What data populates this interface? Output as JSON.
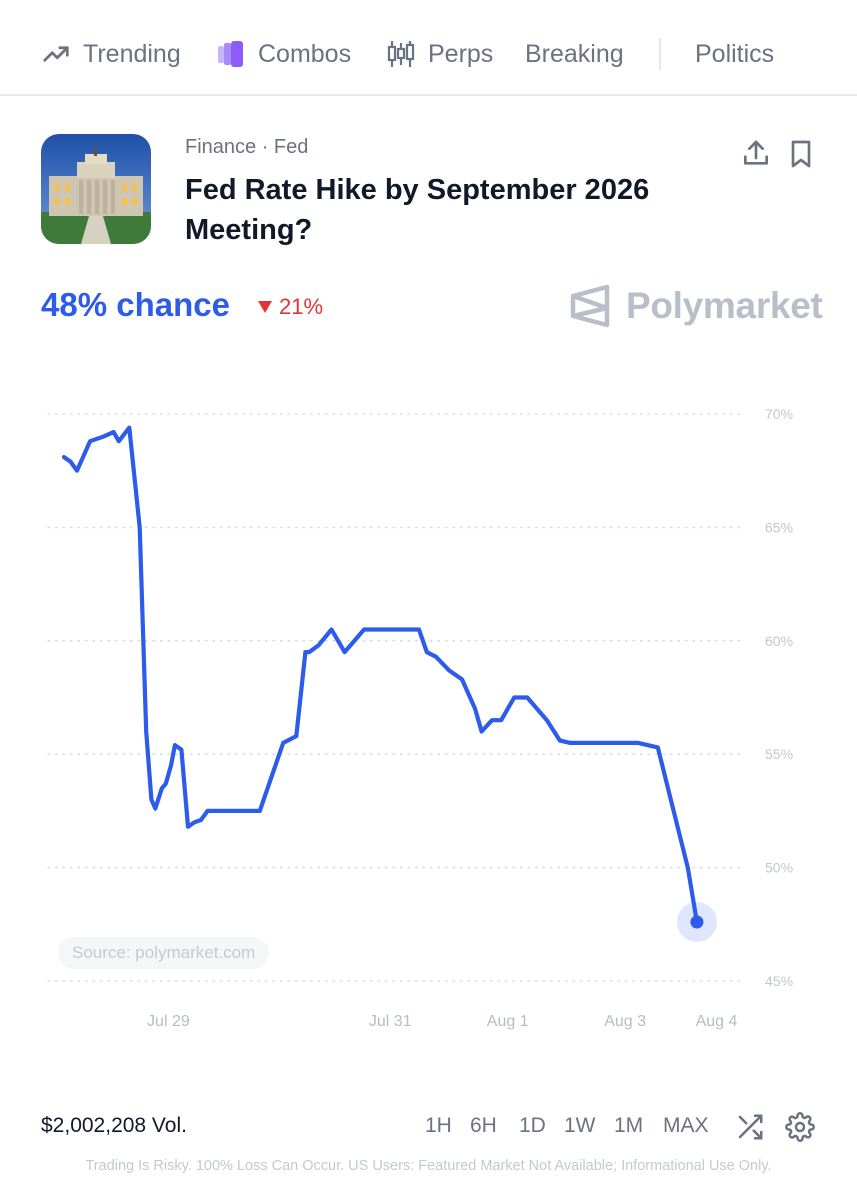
{
  "nav": {
    "items": [
      {
        "label": "Trending",
        "icon": "trending-up-icon"
      },
      {
        "label": "Combos",
        "icon": "combos-icon"
      },
      {
        "label": "Perps",
        "icon": "candlestick-icon"
      },
      {
        "label": "Breaking",
        "icon": ""
      },
      {
        "label": "Politics",
        "icon": ""
      }
    ]
  },
  "market": {
    "category": "Finance · Fed",
    "title": "Fed Rate Hike by September 2026 Meeting?",
    "image": "federal-reserve-building",
    "chance": "48% chance",
    "change": "21%",
    "change_direction": "down",
    "brand": "Polymarket",
    "source": "Source: polymarket.com",
    "volume": "$2,002,208 Vol."
  },
  "colors": {
    "accent": "#2d5bea",
    "negative": "#e03535",
    "muted": "#6b7280"
  },
  "time_ranges": [
    "1H",
    "6H",
    "1D",
    "1W",
    "1M",
    "MAX"
  ],
  "disclaimer": "Trading Is Risky. 100% Loss Can Occur. US Users: Featured Market Not Available; Informational Use Only.",
  "chart_data": {
    "type": "line",
    "title": "",
    "xlabel": "",
    "ylabel": "",
    "ylim": [
      45,
      70
    ],
    "y_ticks": [
      70,
      65,
      60,
      55,
      50,
      45
    ],
    "y_tick_labels": [
      "70%",
      "65%",
      "60%",
      "55%",
      "50%",
      "45%"
    ],
    "x_tick_labels": [
      "Jul 29",
      "Jul 31",
      "Aug 1",
      "Aug 3",
      "Aug 4"
    ],
    "grid": true,
    "y_axis_position": "right",
    "series": [
      {
        "x": [
          0.0,
          0.05,
          0.1,
          0.2,
          0.3,
          0.38,
          0.42,
          0.5,
          0.58,
          0.63,
          0.67,
          0.7,
          0.75,
          0.78,
          0.82,
          0.85,
          0.9,
          0.95,
          1.0,
          1.05,
          1.1,
          1.25,
          1.5,
          1.68,
          1.78,
          1.85,
          1.88,
          1.95,
          2.05,
          2.15,
          2.3,
          2.4,
          2.45,
          2.5,
          2.6,
          2.68,
          2.72,
          2.78,
          2.85,
          2.95,
          3.05,
          3.15,
          3.2,
          3.28,
          3.35,
          3.45,
          3.55,
          3.7,
          3.8,
          3.88,
          3.93,
          3.98,
          4.05,
          4.15,
          4.3,
          4.4,
          4.55,
          4.65,
          4.78,
          4.85,
          4.95,
          5.05,
          5.1,
          5.18,
          5.23,
          5.3,
          5.38,
          5.45,
          5.55,
          5.65,
          5.7,
          5.85,
          6.0,
          6.2,
          6.3,
          6.35,
          6.45,
          6.5
        ],
        "y": [
          68.1,
          67.9,
          67.5,
          68.8,
          69.0,
          69.2,
          68.8,
          69.4,
          65.0,
          56.0,
          53.0,
          52.6,
          53.5,
          53.7,
          54.5,
          55.4,
          55.2,
          51.8,
          52.0,
          52.1,
          52.5,
          52.5,
          52.5,
          55.5,
          55.8,
          59.5,
          59.5,
          59.8,
          60.5,
          59.5,
          60.5,
          60.5,
          60.5,
          60.5,
          60.5,
          60.5,
          60.5,
          59.5,
          59.3,
          58.7,
          58.3,
          57.0,
          56.0,
          56.5,
          56.5,
          57.5,
          57.5,
          56.5,
          55.6,
          55.5,
          55.5,
          55.5,
          55.5,
          55.5,
          55.5,
          55.5,
          55.3,
          53.0,
          50.0,
          47.6,
          47.6,
          47.6,
          47.6,
          47.6,
          47.6,
          47.6,
          47.6,
          47.6,
          47.6,
          47.6,
          47.6,
          47.6,
          47.6,
          47.6,
          47.6,
          47.6,
          47.6,
          47.6
        ]
      }
    ],
    "last_value": 47.6
  }
}
